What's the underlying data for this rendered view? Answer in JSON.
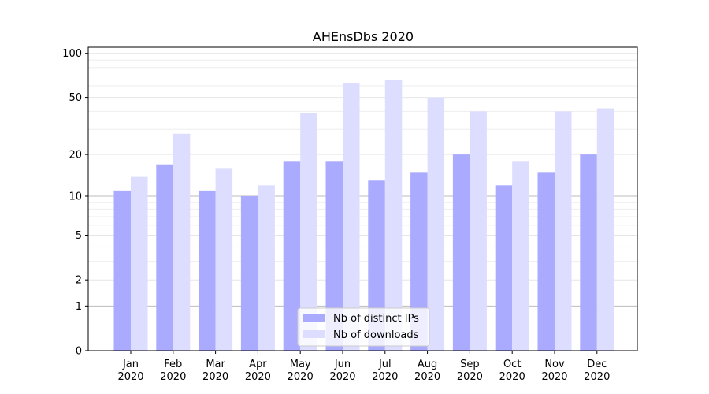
{
  "chart_data": {
    "type": "bar",
    "title": "AHEnsDbs 2020",
    "xlabel": "",
    "ylabel": "",
    "yscale": "log1p",
    "ylim": [
      0,
      110
    ],
    "yticks": [
      0,
      1,
      2,
      5,
      10,
      20,
      50,
      100
    ],
    "grid": "horizontal",
    "legend_position": "bottom-center",
    "categories": [
      "Jan\n2020",
      "Feb\n2020",
      "Mar\n2020",
      "Apr\n2020",
      "May\n2020",
      "Jun\n2020",
      "Jul\n2020",
      "Aug\n2020",
      "Sep\n2020",
      "Oct\n2020",
      "Nov\n2020",
      "Dec\n2020"
    ],
    "series": [
      {
        "name": "Nb of distinct IPs",
        "color": "#aaaaff",
        "values": [
          11,
          17,
          11,
          10,
          18,
          18,
          13,
          15,
          20,
          12,
          15,
          20
        ]
      },
      {
        "name": "Nb of downloads",
        "color": "#ddddff",
        "values": [
          14,
          28,
          16,
          12,
          39,
          63,
          66,
          50,
          40,
          18,
          40,
          42
        ]
      }
    ]
  }
}
